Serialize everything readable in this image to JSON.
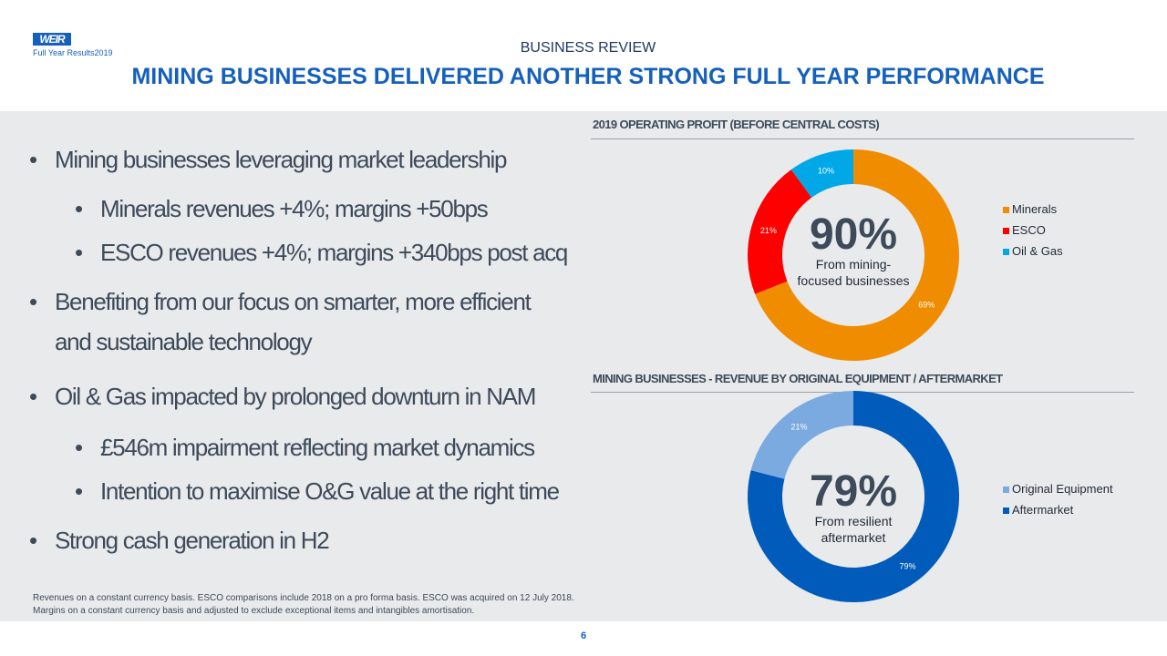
{
  "header": {
    "logo": "WEIR",
    "logo_sub": "Full Year Results2019",
    "section": "BUSINESS REVIEW",
    "title": "MINING BUSINESSES DELIVERED ANOTHER STRONG FULL YEAR PERFORMANCE"
  },
  "bullets": [
    {
      "text": "Mining businesses leveraging market leadership",
      "level": 1
    },
    {
      "text": "Minerals revenues +4%; margins +50bps",
      "level": 2
    },
    {
      "text": "ESCO revenues +4%; margins +340bps post acq",
      "level": 2
    },
    {
      "text": "Benefiting from our focus on smarter, more efficient",
      "level": 1
    },
    {
      "text": "and sustainable technology",
      "level": 0
    },
    {
      "text": "Oil & Gas impacted by prolonged downturn in NAM",
      "level": 1
    },
    {
      "text": "£546m impairment reflecting market dynamics",
      "level": 2
    },
    {
      "text": "Intention to maximise O&G value at the right time",
      "level": 2
    },
    {
      "text": "Strong cash generation in H2",
      "level": 1
    }
  ],
  "bullet_char": "•",
  "footnote": "Revenues on a constant currency basis. ESCO comparisons include 2018 on a pro forma basis. ESCO was acquired on 12 July 2018. Margins on a constant currency basis and adjusted to exclude exceptional items and intangibles amortisation.",
  "page_number": "6",
  "chart_data": [
    {
      "type": "pie",
      "donut": true,
      "title": "2019 OPERATING PROFIT (BEFORE CENTRAL COSTS)",
      "categories": [
        "Minerals",
        "ESCO",
        "Oil & Gas"
      ],
      "values": [
        69,
        21,
        10
      ],
      "labels": [
        "69%",
        "21%",
        "10%"
      ],
      "colors": [
        "#f08c00",
        "#ff0000",
        "#00a8e8"
      ],
      "center_value": "90%",
      "center_text": "From mining-focused businesses",
      "legend": "right"
    },
    {
      "type": "pie",
      "donut": true,
      "title": "MINING BUSINESSES - REVENUE BY ORIGINAL EQUIPMENT / AFTERMARKET",
      "categories": [
        "Aftermarket",
        "Original Equipment"
      ],
      "values": [
        79,
        21
      ],
      "labels": [
        "79%",
        "21%"
      ],
      "colors": [
        "#005bbb",
        "#7aaae0"
      ],
      "legend_order": [
        "Original Equipment",
        "Aftermarket"
      ],
      "center_value": "79%",
      "center_text": "From resilient aftermarket",
      "legend": "right"
    }
  ]
}
